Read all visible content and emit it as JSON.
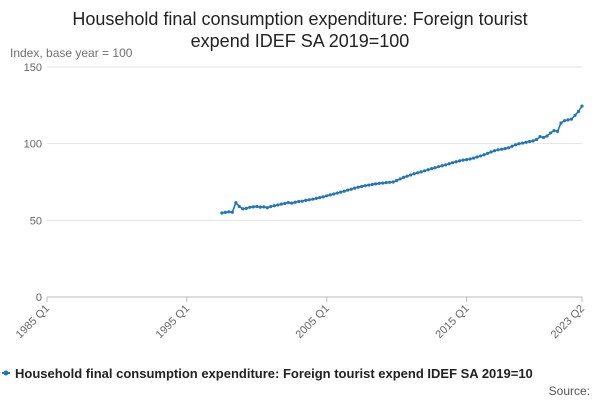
{
  "chart_data": {
    "type": "line",
    "title_lines": [
      "Household final consumption expenditure: Foreign tourist",
      "expend IDEF SA 2019=100"
    ],
    "ylabel": "Index, base year = 100",
    "ylim": [
      0,
      150
    ],
    "yticks": [
      "0",
      "50",
      "100",
      "150"
    ],
    "xlim": [
      "1985 Q1",
      "2023 Q2"
    ],
    "xticks": [
      "1985 Q1",
      "1995 Q1",
      "2005 Q1",
      "2015 Q1",
      "2023 Q2"
    ],
    "grid": true,
    "legend_position": "bottom",
    "series": [
      {
        "name": "Household final consumption expenditure: Foreign tourist expend IDEF SA 2019=10",
        "color": "#1f77b4",
        "points": [
          [
            "1997 Q3",
            54.8
          ],
          [
            "1997 Q4",
            55.2
          ],
          [
            "1998 Q1",
            55.5
          ],
          [
            "1998 Q2",
            55.3
          ],
          [
            "1998 Q3",
            61.5
          ],
          [
            "1998 Q4",
            59.0
          ],
          [
            "1999 Q1",
            57.5
          ],
          [
            "1999 Q2",
            57.8
          ],
          [
            "1999 Q3",
            58.5
          ],
          [
            "1999 Q4",
            58.8
          ],
          [
            "2000 Q1",
            59.0
          ],
          [
            "2000 Q2",
            58.6
          ],
          [
            "2000 Q3",
            58.8
          ],
          [
            "2000 Q4",
            58.2
          ],
          [
            "2001 Q1",
            59.0
          ],
          [
            "2001 Q2",
            59.5
          ],
          [
            "2001 Q3",
            60.0
          ],
          [
            "2001 Q4",
            60.6
          ],
          [
            "2002 Q1",
            61.0
          ],
          [
            "2002 Q2",
            61.6
          ],
          [
            "2002 Q3",
            61.2
          ],
          [
            "2002 Q4",
            61.8
          ],
          [
            "2003 Q1",
            62.3
          ],
          [
            "2003 Q2",
            62.5
          ],
          [
            "2003 Q3",
            63.0
          ],
          [
            "2003 Q4",
            63.4
          ],
          [
            "2004 Q1",
            63.8
          ],
          [
            "2004 Q2",
            64.3
          ],
          [
            "2004 Q3",
            64.8
          ],
          [
            "2004 Q4",
            65.3
          ],
          [
            "2005 Q1",
            66.0
          ],
          [
            "2005 Q2",
            66.6
          ],
          [
            "2005 Q3",
            67.2
          ],
          [
            "2005 Q4",
            67.8
          ],
          [
            "2006 Q1",
            68.4
          ],
          [
            "2006 Q2",
            69.0
          ],
          [
            "2006 Q3",
            69.7
          ],
          [
            "2006 Q4",
            70.3
          ],
          [
            "2007 Q1",
            71.0
          ],
          [
            "2007 Q2",
            71.6
          ],
          [
            "2007 Q3",
            72.1
          ],
          [
            "2007 Q4",
            72.6
          ],
          [
            "2008 Q1",
            73.0
          ],
          [
            "2008 Q2",
            73.4
          ],
          [
            "2008 Q3",
            73.8
          ],
          [
            "2008 Q4",
            74.1
          ],
          [
            "2009 Q1",
            74.3
          ],
          [
            "2009 Q2",
            74.6
          ],
          [
            "2009 Q3",
            74.8
          ],
          [
            "2009 Q4",
            75.0
          ],
          [
            "2010 Q1",
            76.0
          ],
          [
            "2010 Q2",
            77.0
          ],
          [
            "2010 Q3",
            78.0
          ],
          [
            "2010 Q4",
            78.8
          ],
          [
            "2011 Q1",
            79.6
          ],
          [
            "2011 Q2",
            80.4
          ],
          [
            "2011 Q3",
            81.0
          ],
          [
            "2011 Q4",
            81.6
          ],
          [
            "2012 Q1",
            82.3
          ],
          [
            "2012 Q2",
            83.0
          ],
          [
            "2012 Q3",
            83.7
          ],
          [
            "2012 Q4",
            84.3
          ],
          [
            "2013 Q1",
            85.0
          ],
          [
            "2013 Q2",
            85.6
          ],
          [
            "2013 Q3",
            86.2
          ],
          [
            "2013 Q4",
            86.9
          ],
          [
            "2014 Q1",
            87.6
          ],
          [
            "2014 Q2",
            88.2
          ],
          [
            "2014 Q3",
            88.8
          ],
          [
            "2014 Q4",
            89.3
          ],
          [
            "2015 Q1",
            89.6
          ],
          [
            "2015 Q2",
            90.0
          ],
          [
            "2015 Q3",
            90.6
          ],
          [
            "2015 Q4",
            91.3
          ],
          [
            "2016 Q1",
            92.0
          ],
          [
            "2016 Q2",
            92.8
          ],
          [
            "2016 Q3",
            93.7
          ],
          [
            "2016 Q4",
            94.6
          ],
          [
            "2017 Q1",
            95.4
          ],
          [
            "2017 Q2",
            96.0
          ],
          [
            "2017 Q3",
            96.4
          ],
          [
            "2017 Q4",
            96.8
          ],
          [
            "2018 Q1",
            97.3
          ],
          [
            "2018 Q2",
            98.3
          ],
          [
            "2018 Q3",
            99.3
          ],
          [
            "2018 Q4",
            100.0
          ],
          [
            "2019 Q1",
            100.4
          ],
          [
            "2019 Q2",
            100.9
          ],
          [
            "2019 Q3",
            101.4
          ],
          [
            "2019 Q4",
            101.8
          ],
          [
            "2020 Q1",
            102.7
          ],
          [
            "2020 Q2",
            104.6
          ],
          [
            "2020 Q3",
            104.0
          ],
          [
            "2020 Q4",
            105.0
          ],
          [
            "2021 Q1",
            107.0
          ],
          [
            "2021 Q2",
            108.5
          ],
          [
            "2021 Q3",
            108.0
          ],
          [
            "2021 Q4",
            113.5
          ],
          [
            "2022 Q1",
            115.0
          ],
          [
            "2022 Q2",
            115.5
          ],
          [
            "2022 Q3",
            116.0
          ],
          [
            "2022 Q4",
            118.5
          ],
          [
            "2023 Q1",
            121.0
          ],
          [
            "2023 Q2",
            124.5
          ]
        ]
      }
    ]
  },
  "source_label": "Source:"
}
